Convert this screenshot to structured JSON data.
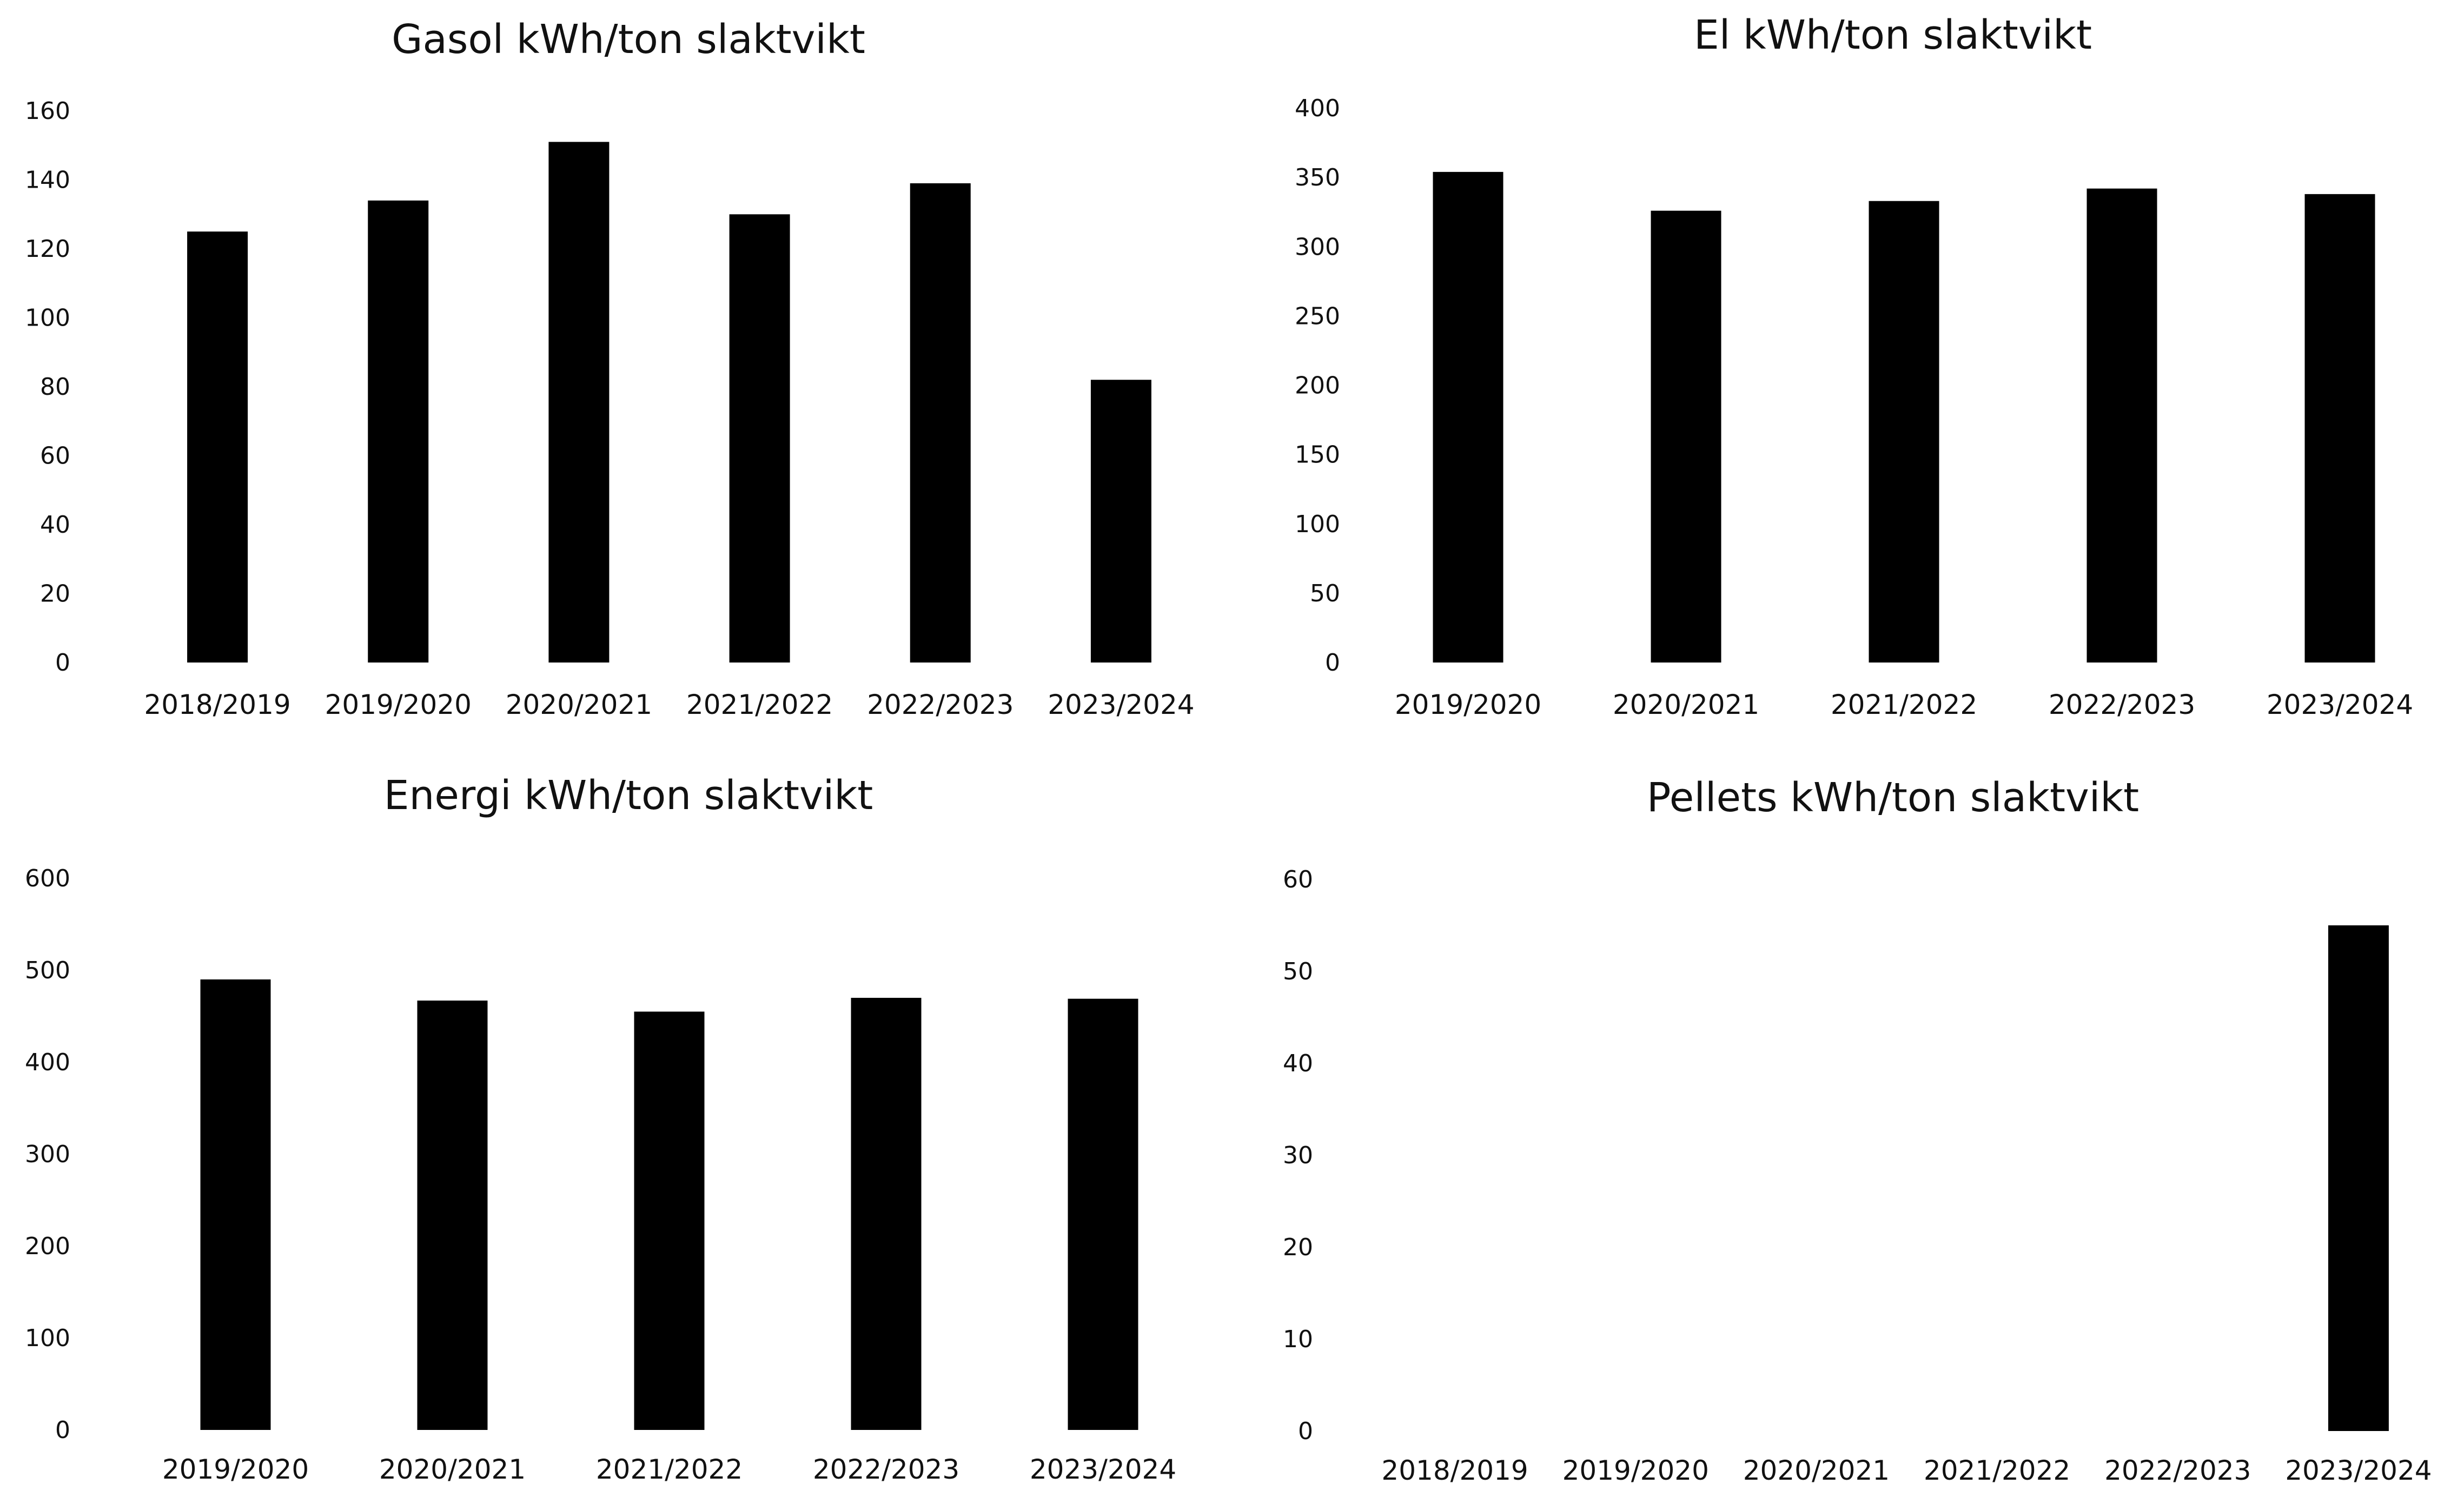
{
  "chart_data": [
    {
      "type": "bar",
      "title": "Gasol kWh/ton slaktvikt",
      "categories": [
        "2018/2019",
        "2019/2020",
        "2020/2021",
        "2021/2022",
        "2022/2023",
        "2023/2024"
      ],
      "values": [
        125,
        134,
        151,
        130,
        139,
        82
      ],
      "yticks": [
        "0",
        "20",
        "40",
        "60",
        "80",
        "100",
        "120",
        "140",
        "160"
      ],
      "ylim": [
        0,
        160
      ],
      "bar_color": "#000000",
      "grid": false
    },
    {
      "type": "bar",
      "title": "El kWh/ton slaktvikt",
      "categories": [
        "2019/2020",
        "2020/2021",
        "2021/2022",
        "2022/2023",
        "2023/2024"
      ],
      "values": [
        354,
        326,
        333,
        342,
        338
      ],
      "yticks": [
        "0",
        "50",
        "100",
        "150",
        "200",
        "250",
        "300",
        "350",
        "400"
      ],
      "ylim": [
        0,
        400
      ],
      "bar_color": "#000000",
      "grid": false
    },
    {
      "type": "bar",
      "title": "Energi kWh/ton slaktvikt",
      "categories": [
        "2019/2020",
        "2020/2021",
        "2021/2022",
        "2022/2023",
        "2023/2024"
      ],
      "values": [
        490,
        467,
        455,
        470,
        469
      ],
      "yticks": [
        "0",
        "100",
        "200",
        "300",
        "400",
        "500",
        "600"
      ],
      "ylim": [
        0,
        600
      ],
      "bar_color": "#000000",
      "grid": false
    },
    {
      "type": "bar",
      "title": "Pellets kWh/ton slaktvikt",
      "categories": [
        "2018/2019",
        "2019/2020",
        "2020/2021",
        "2021/2022",
        "2022/2023",
        "2023/2024"
      ],
      "values": [
        0,
        0,
        0,
        0,
        0,
        55
      ],
      "yticks": [
        "0",
        "10",
        "20",
        "30",
        "40",
        "50",
        "60"
      ],
      "ylim": [
        0,
        60
      ],
      "bar_color": "#000000",
      "grid": false
    }
  ]
}
